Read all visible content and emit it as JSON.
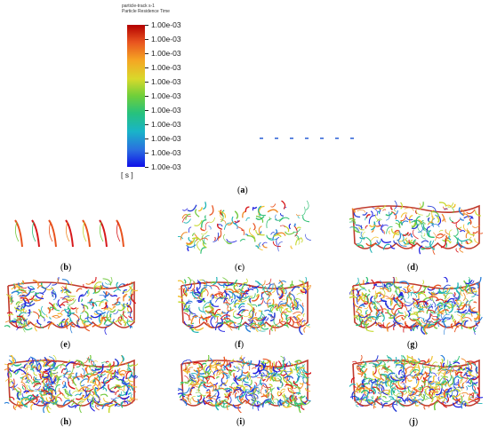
{
  "header": {
    "line1": "particle-track s-1",
    "line2": "Particle Residence Time"
  },
  "colorbar": {
    "ticks": [
      "1.00e-03",
      "1.00e-03",
      "1.00e-03",
      "1.00e-03",
      "1.00e-03",
      "1.00e-03",
      "1.00e-03",
      "1.00e-03",
      "1.00e-03",
      "1.00e-03",
      "1.00e-03"
    ],
    "unit": "[ s ]",
    "colors": [
      "#d7191c",
      "#e8531f",
      "#f08a28",
      "#f2c12e",
      "#c6d930",
      "#72c93f",
      "#2fbf73",
      "#1fb3b5",
      "#2a7fd8",
      "#2a3fd6",
      "#2020e0"
    ]
  },
  "captions": {
    "a": "a",
    "b": "b",
    "c": "c",
    "d": "d",
    "e": "e",
    "f": "f",
    "g": "g",
    "h": "h",
    "i": "i",
    "j": "j"
  },
  "panel_density": {
    "b": 0.12,
    "c": 0.2,
    "d": 0.35,
    "e": 0.6,
    "f": 0.75,
    "g": 0.82,
    "h": 0.9,
    "i": 0.95,
    "j": 1.0
  }
}
